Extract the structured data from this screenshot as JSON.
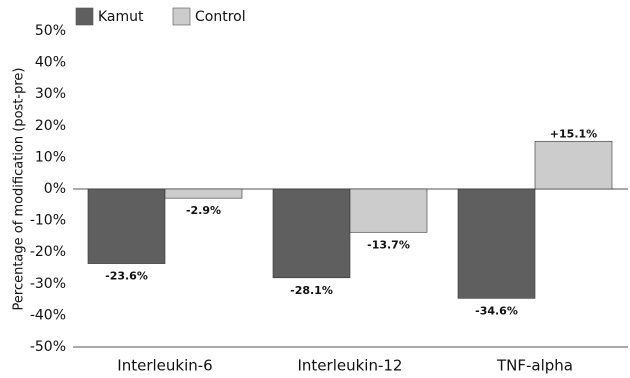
{
  "chart_data": {
    "type": "bar",
    "categories": [
      "Interleukin-6",
      "Interleukin-12",
      "TNF-alpha"
    ],
    "series": [
      {
        "name": "Kamut",
        "values": [
          -23.6,
          -28.1,
          -34.6
        ],
        "labels": [
          "-23.6%",
          "-28.1%",
          "-34.6%"
        ],
        "color": "#5f5f5f"
      },
      {
        "name": "Control",
        "values": [
          -2.9,
          -13.7,
          15.1
        ],
        "labels": [
          "-2.9%",
          "-13.7%",
          "+15.1%"
        ],
        "color": "#cccccc"
      }
    ],
    "title": "",
    "xlabel": "",
    "ylabel": "Percentage of modification (post-pre)",
    "ylim": [
      -50,
      50
    ],
    "yticks": [
      50,
      40,
      30,
      20,
      10,
      0,
      -10,
      -20,
      -30,
      -40,
      -50
    ],
    "ytick_labels": [
      "50%",
      "40%",
      "30%",
      "20%",
      "10%",
      "0%",
      "-10%",
      "-20%",
      "-30%",
      "-40%",
      "-50%"
    ],
    "grid": false,
    "legend_position": "top-left"
  }
}
